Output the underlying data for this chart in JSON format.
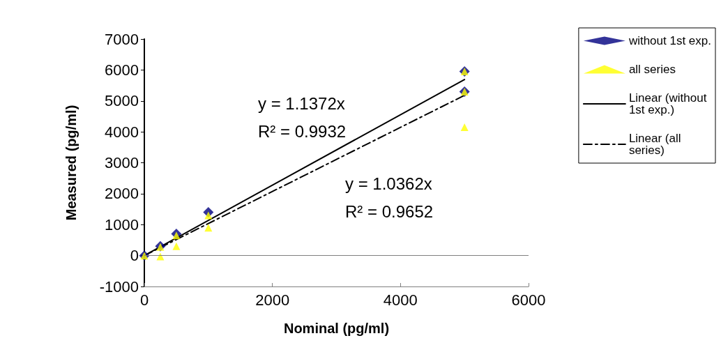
{
  "chart_data": {
    "type": "scatter",
    "xlabel": "Nominal (pg/ml)",
    "ylabel": "Measured (pg/ml)",
    "xlim": [
      0,
      6000
    ],
    "xticks": [
      0,
      2000,
      4000,
      6000
    ],
    "ylim": [
      -1000,
      7000
    ],
    "yticks": [
      -1000,
      0,
      1000,
      2000,
      3000,
      4000,
      5000,
      6000,
      7000
    ],
    "grid": false,
    "legend": "right",
    "ref_lines": [
      {
        "axis": "y",
        "value": 0,
        "color": "#808080"
      }
    ],
    "annotations": [
      "y = 1.1372x",
      "R² = 0.9932",
      "y = 1.0362x",
      "R² = 0.9652"
    ],
    "series": [
      {
        "name": "without 1st exp.",
        "marker": "diamond",
        "color": "#000080",
        "x": [
          0,
          250,
          500,
          1000,
          5000,
          5000
        ],
        "values": [
          0,
          300,
          700,
          1400,
          5950,
          5300
        ]
      },
      {
        "name": "all series",
        "marker": "triangle",
        "color": "#ffff00",
        "x": [
          0,
          250,
          250,
          500,
          500,
          1000,
          1000,
          5000,
          5000,
          5000
        ],
        "values": [
          0,
          280,
          -30,
          650,
          300,
          1300,
          900,
          5950,
          5300,
          4150
        ]
      },
      {
        "name": "Linear (without 1st exp.)",
        "type": "line",
        "line_style": "solid",
        "marker": "none",
        "color": "#000000",
        "x": [
          0,
          5000
        ],
        "values": [
          0,
          5690
        ]
      },
      {
        "name": "Linear (all series)",
        "type": "line",
        "line_style": "dashed",
        "marker": "none",
        "color": "#000000",
        "x": [
          0,
          5000
        ],
        "values": [
          0,
          5180
        ]
      }
    ]
  }
}
